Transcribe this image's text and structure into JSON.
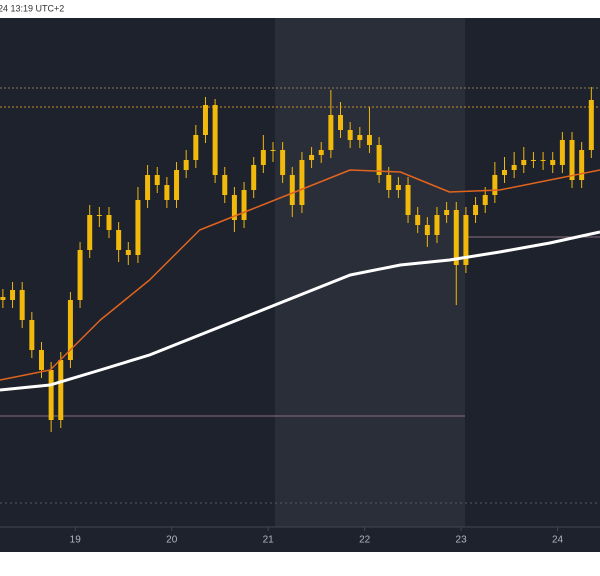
{
  "chart_data": {
    "type": "candlestick",
    "header": "24 13:19 UTC+2",
    "xlim": [
      18.22,
      24.44
    ],
    "xticks": [
      19,
      20,
      21,
      22,
      23,
      24
    ],
    "ylim": [
      0,
      509
    ],
    "candle_color": "#f0b90b",
    "x": [
      18.25,
      18.35,
      18.45,
      18.55,
      18.65,
      18.75,
      18.85,
      18.95,
      19.05,
      19.15,
      19.25,
      19.35,
      19.45,
      19.55,
      19.65,
      19.75,
      19.85,
      19.95,
      20.05,
      20.15,
      20.25,
      20.35,
      20.45,
      20.55,
      20.65,
      20.75,
      20.85,
      20.95,
      21.05,
      21.15,
      21.25,
      21.35,
      21.45,
      21.55,
      21.65,
      21.75,
      21.85,
      21.95,
      22.05,
      22.15,
      22.25,
      22.35,
      22.45,
      22.55,
      22.65,
      22.75,
      22.85,
      22.95,
      23.05,
      23.15,
      23.25,
      23.35,
      23.45,
      23.55,
      23.65,
      23.75,
      23.85,
      23.95,
      24.05,
      24.15,
      24.25,
      24.35
    ],
    "open": [
      230,
      227,
      237,
      207,
      177,
      157,
      107,
      167,
      227,
      277,
      312,
      312,
      297,
      277,
      272,
      327,
      352,
      342,
      327,
      357,
      367,
      392,
      422,
      352,
      332,
      307,
      337,
      362,
      377,
      377,
      352,
      322,
      367,
      372,
      377,
      412,
      397,
      387,
      392,
      382,
      352,
      337,
      342,
      312,
      302,
      292,
      312,
      317,
      262,
      312,
      322,
      332,
      352,
      357,
      362,
      367,
      367,
      367,
      362,
      387,
      347,
      377
    ],
    "high": [
      238,
      245,
      245,
      215,
      185,
      165,
      175,
      235,
      285,
      322,
      320,
      320,
      305,
      285,
      340,
      362,
      360,
      350,
      365,
      377,
      402,
      430,
      428,
      360,
      340,
      345,
      370,
      392,
      385,
      385,
      360,
      375,
      380,
      385,
      437,
      425,
      405,
      400,
      420,
      390,
      360,
      350,
      350,
      320,
      310,
      320,
      325,
      325,
      320,
      330,
      340,
      365,
      370,
      375,
      380,
      375,
      375,
      375,
      395,
      395,
      385,
      440
    ],
    "low": [
      219,
      219,
      199,
      169,
      149,
      95,
      99,
      159,
      219,
      269,
      300,
      289,
      265,
      262,
      264,
      319,
      334,
      319,
      319,
      349,
      359,
      384,
      344,
      324,
      295,
      299,
      329,
      354,
      365,
      344,
      310,
      314,
      359,
      364,
      369,
      389,
      379,
      379,
      374,
      344,
      329,
      329,
      304,
      294,
      280,
      284,
      304,
      222,
      254,
      304,
      314,
      324,
      344,
      349,
      354,
      359,
      357,
      354,
      354,
      339,
      339,
      369
    ],
    "close": [
      227,
      237,
      207,
      177,
      157,
      107,
      167,
      227,
      277,
      312,
      312,
      297,
      277,
      272,
      327,
      352,
      342,
      327,
      357,
      367,
      392,
      422,
      352,
      332,
      307,
      337,
      362,
      377,
      377,
      352,
      322,
      367,
      372,
      377,
      412,
      397,
      387,
      392,
      382,
      352,
      337,
      342,
      312,
      302,
      292,
      312,
      317,
      262,
      312,
      322,
      332,
      352,
      357,
      362,
      367,
      367,
      367,
      362,
      387,
      347,
      377,
      427
    ],
    "lines_x": [
      18.22,
      18.74,
      19.26,
      19.77,
      20.29,
      20.81,
      21.33,
      21.85,
      22.37,
      22.88,
      23.4,
      23.92,
      24.44
    ],
    "lines": [
      {
        "color": "#e0641e",
        "width": 1.5,
        "values": [
          147,
          157,
          207,
          247,
          297,
          317,
          337,
          357,
          355,
          335,
          337,
          347,
          357
        ]
      },
      {
        "color": "#ffffff",
        "width": 3,
        "values": [
          137,
          142,
          157,
          172,
          192,
          212,
          232,
          252,
          262,
          267,
          275,
          284,
          295
        ]
      }
    ],
    "levels": [
      {
        "value": 439,
        "xrange": [
          18.22,
          24.44
        ],
        "color": "#8a7a55",
        "dash": "2 2"
      },
      {
        "value": 420,
        "xrange": [
          18.22,
          24.44
        ],
        "color": "#c78a2a",
        "dash": "2 2"
      },
      {
        "value": 111,
        "xrange": [
          18.22,
          23.04
        ],
        "color": "#8a6f7a",
        "dash": "none"
      },
      {
        "value": 290,
        "xrange": [
          23.04,
          24.44
        ],
        "color": "#8a6f7a",
        "dash": "none"
      },
      {
        "value": 24,
        "xrange": [
          18.22,
          24.44
        ],
        "color": "#555a66",
        "dash": "2 3"
      }
    ]
  }
}
